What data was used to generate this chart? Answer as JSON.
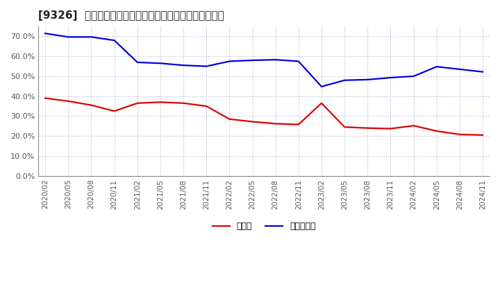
{
  "title": "[9326]  現預金、有利子負債の総資産に対する比率の推移",
  "legend_cash": "現預金",
  "legend_debt": "有利子負債",
  "cash_color": "#dd0000",
  "debt_color": "#0000dd",
  "background_color": "#ffffff",
  "plot_bg_color": "#ffffff",
  "grid_color": "#aaaacc",
  "ylim": [
    0.0,
    0.75
  ],
  "yticks": [
    0.0,
    0.1,
    0.2,
    0.3,
    0.4,
    0.5,
    0.6,
    0.7
  ],
  "dates": [
    "2020/02",
    "2020/05",
    "2020/08",
    "2020/11",
    "2021/02",
    "2021/05",
    "2021/08",
    "2021/11",
    "2022/02",
    "2022/05",
    "2022/08",
    "2022/11",
    "2023/02",
    "2023/05",
    "2023/08",
    "2023/11",
    "2024/02",
    "2024/05",
    "2024/08",
    "2024/11"
  ],
  "cash": [
    0.39,
    0.375,
    0.355,
    0.325,
    0.365,
    0.37,
    0.365,
    0.35,
    0.285,
    0.272,
    0.262,
    0.258,
    0.365,
    0.245,
    0.24,
    0.237,
    0.252,
    0.225,
    0.208,
    0.205
  ],
  "debt": [
    0.715,
    0.697,
    0.697,
    0.68,
    0.57,
    0.565,
    0.555,
    0.55,
    0.575,
    0.58,
    0.583,
    0.575,
    0.448,
    0.48,
    0.483,
    0.493,
    0.5,
    0.548,
    0.535,
    0.522
  ]
}
